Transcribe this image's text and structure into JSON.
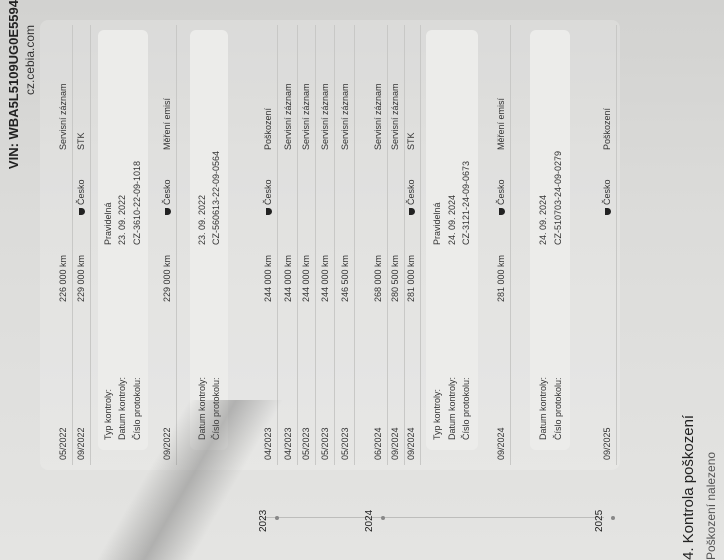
{
  "header": {
    "vin": "VIN: WBA5L5109UG0E5594",
    "site": "cz.cebia.com"
  },
  "rows": [
    {
      "date": "05/2022",
      "km": "226 000 km",
      "country": "",
      "type": "Servisní záznam"
    },
    {
      "date": "09/2022",
      "km": "229 000 km",
      "country": "Česko",
      "type": "STK"
    },
    {
      "date": "09/2022",
      "km": "229 000 km",
      "country": "Česko",
      "type": "Měření emisí"
    },
    {
      "date": "04/2023",
      "km": "244 000 km",
      "country": "Česko",
      "type": "Poškození"
    },
    {
      "date": "04/2023",
      "km": "244 000 km",
      "country": "",
      "type": "Servisní záznam"
    },
    {
      "date": "05/2023",
      "km": "244 000 km",
      "country": "",
      "type": "Servisní záznam"
    },
    {
      "date": "05/2023",
      "km": "244 000 km",
      "country": "",
      "type": "Servisní záznam"
    },
    {
      "date": "05/2023",
      "km": "246 500 km",
      "country": "",
      "type": "Servisní záznam"
    },
    {
      "date": "06/2024",
      "km": "268 000 km",
      "country": "",
      "type": "Servisní záznam"
    },
    {
      "date": "09/2024",
      "km": "280 500 km",
      "country": "",
      "type": "Servisní záznam"
    },
    {
      "date": "09/2024",
      "km": "281 000 km",
      "country": "Česko",
      "type": "STK"
    },
    {
      "date": "09/2024",
      "km": "281 000 km",
      "country": "Česko",
      "type": "Měření emisí"
    },
    {
      "date": "09/2025",
      "km": "",
      "country": "Česko",
      "type": "Poškození"
    }
  ],
  "labels": {
    "type": "Typ kontroly:",
    "date": "Datum kontroly:",
    "protocol": "Číslo protokolu:"
  },
  "boxes": [
    {
      "type": "Pravidelná",
      "date": "23. 09. 2022",
      "protocol": "CZ-3610-22-09-1018"
    },
    {
      "date": "23. 09. 2022",
      "protocol": "CZ-560613-22-09-0564"
    },
    {
      "type": "Pravidelná",
      "date": "24. 09. 2024",
      "protocol": "CZ-3121-24-09-0673"
    },
    {
      "date": "24. 09. 2024",
      "protocol": "CZ-510703-24-09-0279"
    }
  ],
  "years": [
    "2023",
    "2024",
    "2025"
  ],
  "section": {
    "title": "4. Kontrola poškození",
    "subtitle": "Poškození nalezeno"
  }
}
